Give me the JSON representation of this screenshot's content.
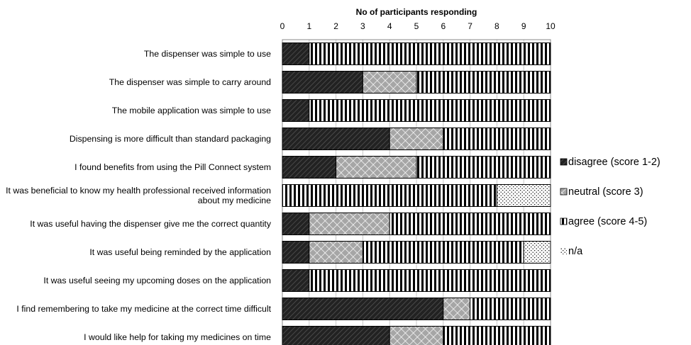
{
  "chart_data": {
    "type": "stacked-bar-horizontal",
    "title": "No of participants responding",
    "categories": [
      "The dispenser was simple to use",
      "The dispenser was simple to carry around",
      "The mobile application was simple to use",
      "Dispensing is more difficult than standard packaging",
      "I found benefits from using the Pill Connect system",
      "It was beneficial to know my health professional received information about my medicine",
      "It was useful having the dispenser give me the correct quantity",
      "It was useful being reminded by the application",
      "It was useful seeing my upcoming doses on the application",
      "I find remembering to take my medicine at the correct time difficult",
      "I would like help for taking my medicines on time"
    ],
    "series": [
      {
        "name": "disagree (score 1-2)",
        "color": "#222222",
        "pattern": "diagonal",
        "values": [
          1,
          3,
          1,
          4,
          2,
          0,
          1,
          1,
          1,
          6,
          4
        ]
      },
      {
        "name": "neutral (score 3)",
        "color": "#a6a6a6",
        "pattern": "crosshatch",
        "values": [
          0,
          2,
          0,
          2,
          3,
          0,
          3,
          2,
          0,
          1,
          2
        ]
      },
      {
        "name": "agree (score 4-5)",
        "color": "#000000",
        "pattern": "vertical",
        "values": [
          9,
          5,
          9,
          4,
          5,
          8,
          6,
          6,
          9,
          3,
          4
        ]
      },
      {
        "name": "n/a",
        "color": "#000000",
        "pattern": "dots",
        "values": [
          0,
          0,
          0,
          0,
          0,
          2,
          0,
          1,
          0,
          0,
          0
        ]
      }
    ],
    "xlim": [
      0,
      10
    ],
    "xticks": [
      0,
      1,
      2,
      3,
      4,
      5,
      6,
      7,
      8,
      9,
      10
    ],
    "grid": true,
    "legend": "right"
  }
}
